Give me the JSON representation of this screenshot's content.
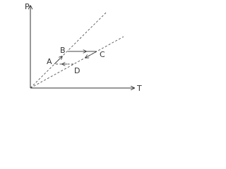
{
  "axes": {
    "y_label": "P",
    "x_label": "T"
  },
  "points": {
    "A": "A",
    "B": "B",
    "C": "C",
    "D": "D"
  }
}
